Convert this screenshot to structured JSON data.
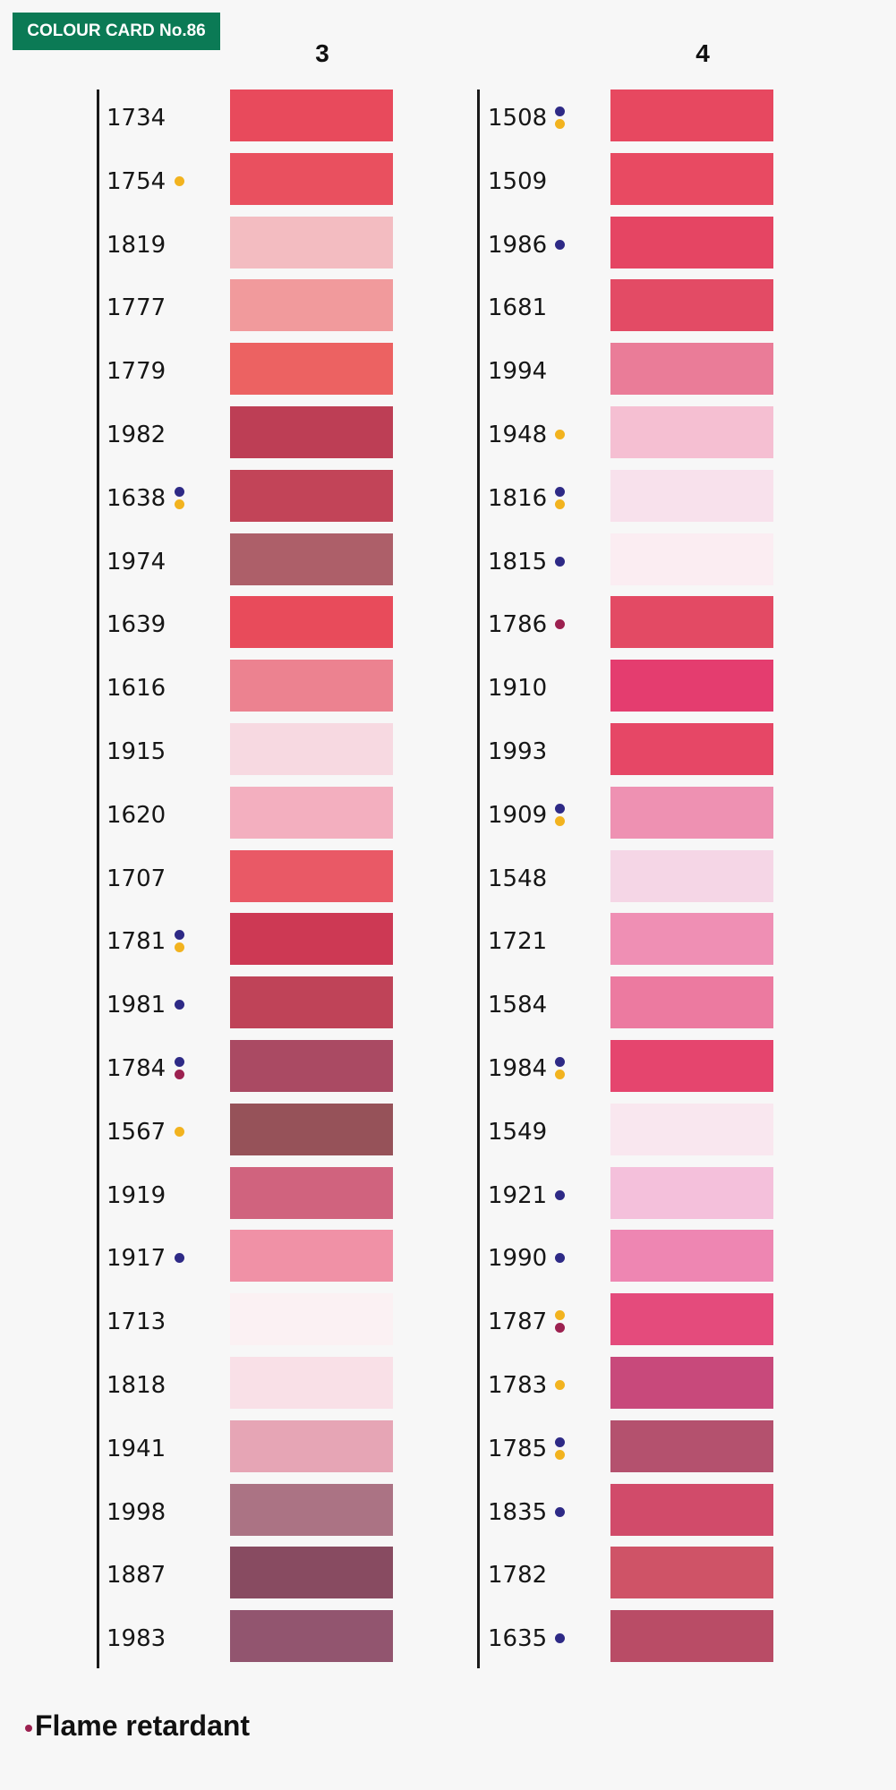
{
  "badge": "COLOUR CARD No.86",
  "legend": {
    "marker_color": "#9c2150",
    "label": "Flame retardant"
  },
  "marker_colors": {
    "blue": "#2e2a86",
    "yellow": "#f2b31f",
    "red": "#9c2150"
  },
  "columns": [
    {
      "heading": "3",
      "items": [
        {
          "code": "1734",
          "color": "#e84a5c",
          "markers": []
        },
        {
          "code": "1754",
          "color": "#e9505f",
          "markers": [
            "yellow"
          ]
        },
        {
          "code": "1819",
          "color": "#f3bcc1",
          "markers": []
        },
        {
          "code": "1777",
          "color": "#f19a9c",
          "markers": []
        },
        {
          "code": "1779",
          "color": "#ec6262",
          "markers": []
        },
        {
          "code": "1982",
          "color": "#bd3e55",
          "markers": []
        },
        {
          "code": "1638",
          "color": "#c24458",
          "markers": [
            "blue",
            "yellow"
          ]
        },
        {
          "code": "1974",
          "color": "#ad5f69",
          "markers": []
        },
        {
          "code": "1639",
          "color": "#e84b5b",
          "markers": []
        },
        {
          "code": "1616",
          "color": "#ec8290",
          "markers": []
        },
        {
          "code": "1915",
          "color": "#f7d9e1",
          "markers": []
        },
        {
          "code": "1620",
          "color": "#f3afbf",
          "markers": []
        },
        {
          "code": "1707",
          "color": "#e95966",
          "markers": []
        },
        {
          "code": "1781",
          "color": "#cd3954",
          "markers": [
            "blue",
            "yellow"
          ]
        },
        {
          "code": "1981",
          "color": "#bf4358",
          "markers": [
            "blue"
          ]
        },
        {
          "code": "1784",
          "color": "#aa4a63",
          "markers": [
            "blue",
            "red"
          ]
        },
        {
          "code": "1567",
          "color": "#965259",
          "markers": [
            "yellow"
          ]
        },
        {
          "code": "1919",
          "color": "#d0637e",
          "markers": []
        },
        {
          "code": "1917",
          "color": "#f091a6",
          "markers": [
            "blue"
          ]
        },
        {
          "code": "1713",
          "color": "#fbf1f3",
          "markers": []
        },
        {
          "code": "1818",
          "color": "#f9e0e7",
          "markers": []
        },
        {
          "code": "1941",
          "color": "#e6a5b5",
          "markers": []
        },
        {
          "code": "1998",
          "color": "#ab7384",
          "markers": []
        },
        {
          "code": "1887",
          "color": "#884b61",
          "markers": []
        },
        {
          "code": "1983",
          "color": "#92556f",
          "markers": []
        }
      ]
    },
    {
      "heading": "4",
      "items": [
        {
          "code": "1508",
          "color": "#e74860",
          "markers": [
            "blue",
            "yellow"
          ]
        },
        {
          "code": "1509",
          "color": "#e84a62",
          "markers": []
        },
        {
          "code": "1986",
          "color": "#e54563",
          "markers": [
            "blue"
          ]
        },
        {
          "code": "1681",
          "color": "#e34b65",
          "markers": []
        },
        {
          "code": "1994",
          "color": "#ea7c98",
          "markers": []
        },
        {
          "code": "1948",
          "color": "#f5bfd2",
          "markers": [
            "yellow"
          ]
        },
        {
          "code": "1816",
          "color": "#f8e1ec",
          "markers": [
            "blue",
            "yellow"
          ]
        },
        {
          "code": "1815",
          "color": "#fbedf2",
          "markers": [
            "blue"
          ]
        },
        {
          "code": "1786",
          "color": "#e34a64",
          "markers": [
            "red"
          ]
        },
        {
          "code": "1910",
          "color": "#e43d6f",
          "markers": []
        },
        {
          "code": "1993",
          "color": "#e64766",
          "markers": []
        },
        {
          "code": "1909",
          "color": "#ee91b2",
          "markers": [
            "blue",
            "yellow"
          ]
        },
        {
          "code": "1548",
          "color": "#f5d6e6",
          "markers": []
        },
        {
          "code": "1721",
          "color": "#ef8fb4",
          "markers": []
        },
        {
          "code": "1584",
          "color": "#ec7aa0",
          "markers": []
        },
        {
          "code": "1984",
          "color": "#e5456e",
          "markers": [
            "blue",
            "yellow"
          ]
        },
        {
          "code": "1549",
          "color": "#f9e7ef",
          "markers": []
        },
        {
          "code": "1921",
          "color": "#f4c0db",
          "markers": [
            "blue"
          ]
        },
        {
          "code": "1990",
          "color": "#ee86b2",
          "markers": [
            "blue"
          ]
        },
        {
          "code": "1787",
          "color": "#e44b7c",
          "markers": [
            "yellow",
            "red"
          ]
        },
        {
          "code": "1783",
          "color": "#c8497b",
          "markers": [
            "yellow"
          ]
        },
        {
          "code": "1785",
          "color": "#b4516e",
          "markers": [
            "blue",
            "yellow"
          ]
        },
        {
          "code": "1835",
          "color": "#d14b6a",
          "markers": [
            "blue"
          ]
        },
        {
          "code": "1782",
          "color": "#cf5367",
          "markers": []
        },
        {
          "code": "1635",
          "color": "#b94c66",
          "markers": [
            "blue"
          ]
        }
      ]
    }
  ]
}
